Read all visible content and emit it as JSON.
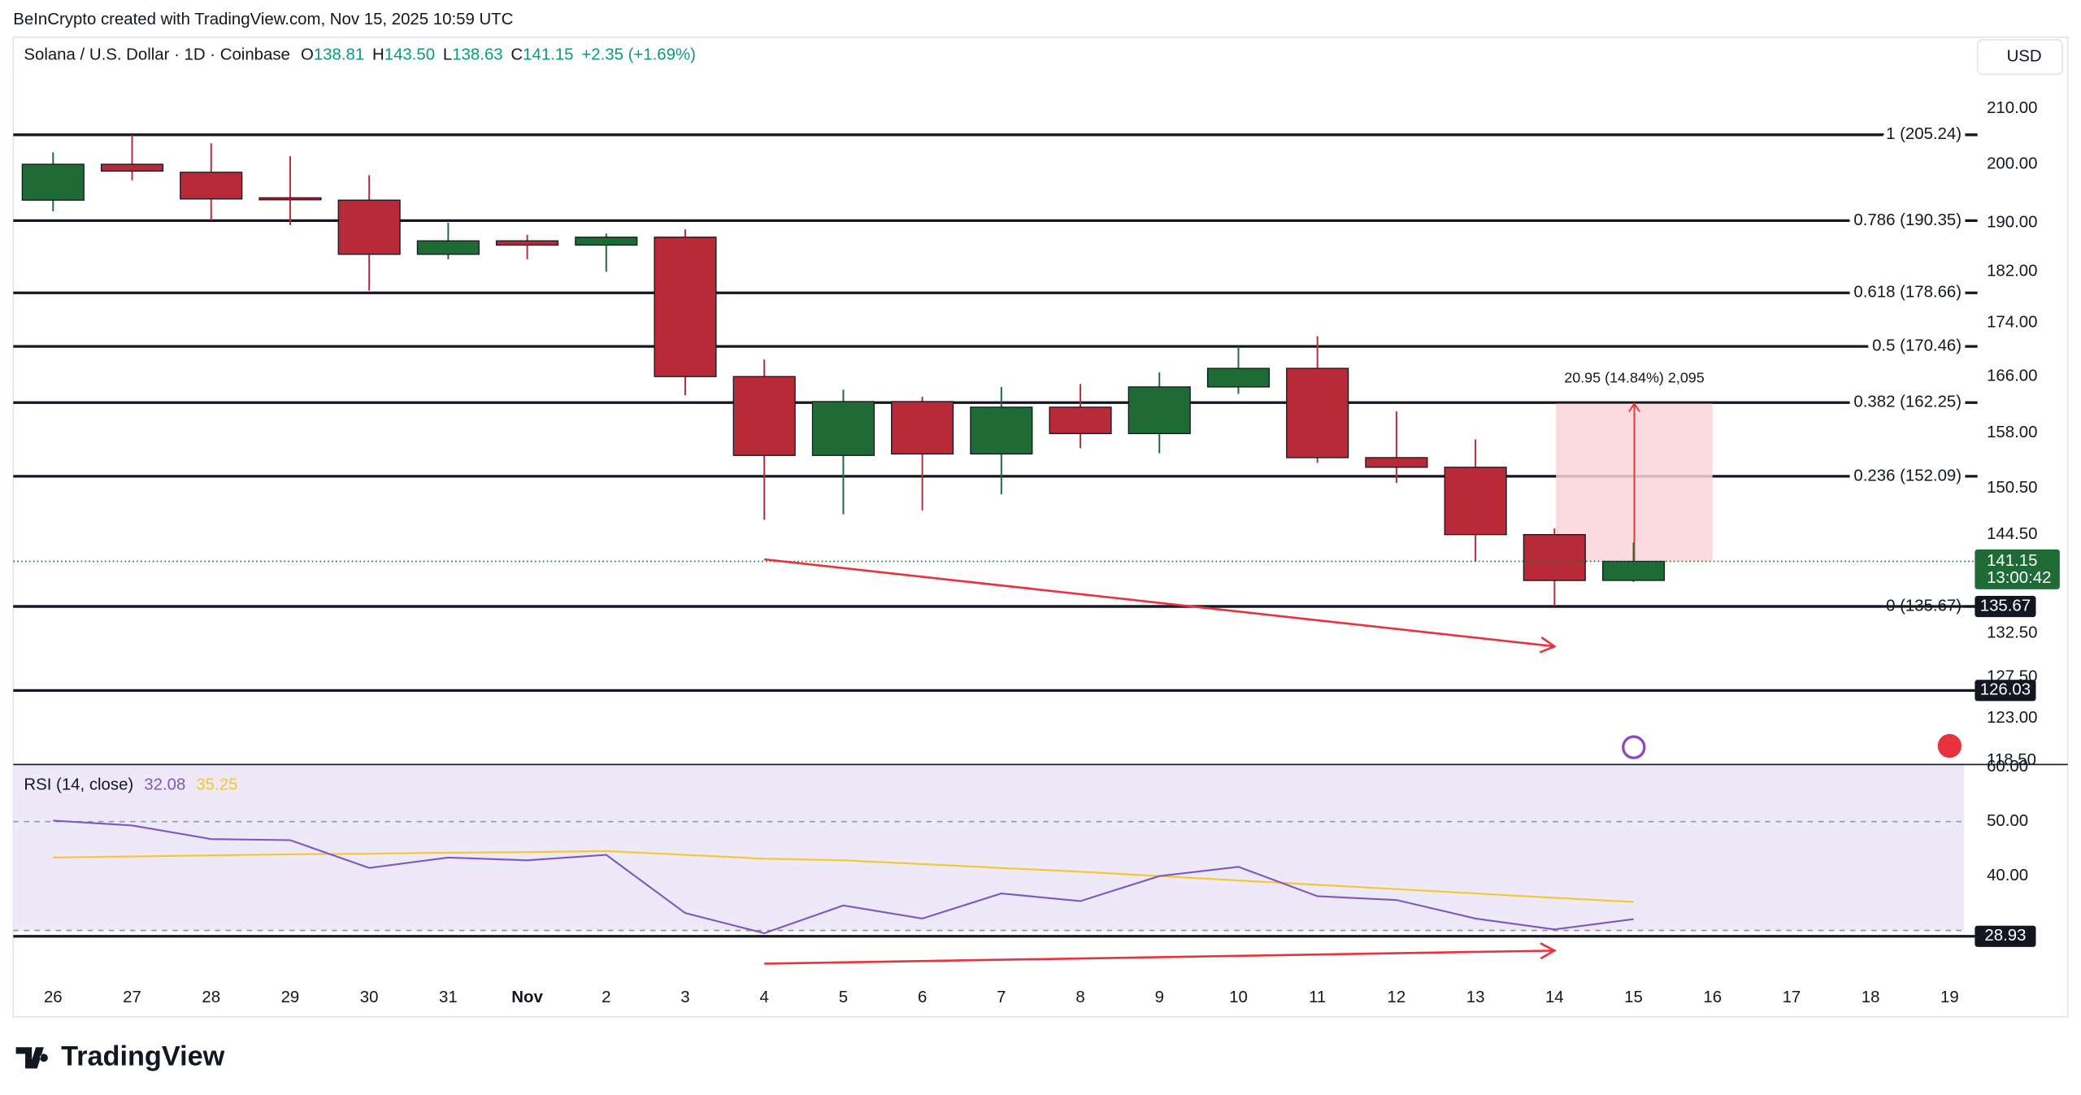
{
  "attribution": "BeInCrypto created with TradingView.com, Nov 15, 2025 10:59 UTC",
  "currency": "USD",
  "logo": "TradingView",
  "chart_data": {
    "type": "candlestick",
    "symbol": "Solana / U.S. Dollar · 1D · Coinbase",
    "ohlc_names": [
      "O",
      "H",
      "L",
      "C"
    ],
    "ohlc_labels": [
      "138.81",
      "143.50",
      "138.63",
      "141.15"
    ],
    "change": "+2.35 (+1.69%)",
    "categories": [
      "26",
      "27",
      "28",
      "29",
      "30",
      "31",
      "Nov",
      "2",
      "3",
      "4",
      "5",
      "6",
      "7",
      "8",
      "9",
      "10",
      "11",
      "12",
      "13",
      "14",
      "15",
      "16",
      "17",
      "18",
      "19"
    ],
    "open": [
      193.8,
      200,
      198.6,
      194.2,
      193.8,
      184.8,
      187.0,
      186.3,
      187.6,
      166,
      154.9,
      162.4,
      155.1,
      161.6,
      157.9,
      164.5,
      167.2,
      154.6,
      153.3,
      144.5,
      138.81,
      null,
      null,
      null,
      null
    ],
    "high": [
      202.1,
      205.2,
      203.7,
      201.4,
      198.1,
      190.0,
      188.0,
      188.2,
      188.9,
      168.5,
      164.1,
      163.1,
      164.5,
      164.9,
      166.6,
      170.4,
      172.0,
      161.0,
      157.1,
      145.3,
      143.5,
      null,
      null,
      null,
      null
    ],
    "low": [
      191.9,
      197.2,
      190.4,
      189.6,
      179.0,
      184.0,
      184.0,
      182.0,
      163.3,
      146.4,
      147.1,
      147.6,
      149.7,
      155.9,
      155.2,
      163.5,
      153.9,
      151.2,
      141.1,
      135.7,
      138.63,
      null,
      null,
      null,
      null
    ],
    "close": [
      200,
      198.8,
      194.0,
      193.9,
      184.8,
      187.0,
      186.3,
      187.6,
      166,
      154.9,
      162.4,
      155.1,
      161.6,
      157.9,
      164.5,
      167.2,
      154.6,
      153.3,
      144.5,
      138.8,
      141.15,
      null,
      null,
      null,
      null
    ],
    "up_color": "#1e6b35",
    "down_color": "#b82a37",
    "log_scale": true,
    "ylim": [
      118.1,
      223.6
    ],
    "yticks": [
      {
        "value": 210,
        "label": "210.00"
      },
      {
        "value": 200,
        "label": "200.00"
      },
      {
        "value": 190,
        "label": "190.00"
      },
      {
        "value": 182,
        "label": "182.00"
      },
      {
        "value": 174,
        "label": "174.00"
      },
      {
        "value": 166,
        "label": "166.00"
      },
      {
        "value": 158,
        "label": "158.00"
      },
      {
        "value": 150.5,
        "label": "150.50"
      },
      {
        "value": 144.5,
        "label": "144.50"
      },
      {
        "value": 132.5,
        "label": "132.50"
      },
      {
        "value": 127.5,
        "label": "127.50"
      },
      {
        "value": 123,
        "label": "123.00"
      },
      {
        "value": 118.5,
        "label": "118.50"
      }
    ],
    "fib_levels": [
      {
        "label": "1 (205.24)",
        "value": 205.24
      },
      {
        "label": "0.786 (190.35)",
        "value": 190.35
      },
      {
        "label": "0.618 (178.66)",
        "value": 178.66
      },
      {
        "label": "0.5 (170.46)",
        "value": 170.46
      },
      {
        "label": "0.382 (162.25)",
        "value": 162.25
      },
      {
        "label": "0.236 (152.09)",
        "value": 152.09
      },
      {
        "label": "0 (135.67)",
        "value": 135.67
      }
    ],
    "tagged_lines": [
      135.67,
      126.03
    ],
    "countdown": "13:00:42",
    "measure": {
      "from": 141.15,
      "to": 162.1,
      "label": "20.95 (14.84%) 2,095"
    },
    "price_arrow": {
      "from": 141.4,
      "to": 131.0,
      "color": "#e8333f"
    },
    "rsi": {
      "label": "RSI (14, close)",
      "values": [
        50.2,
        49.3,
        46.8,
        46.6,
        41.5,
        43.4,
        42.9,
        43.9,
        33.2,
        29.5,
        34.6,
        32.2,
        36.8,
        35.4,
        40.0,
        41.7,
        36.3,
        35.6,
        32.2,
        30.2,
        32.08,
        null,
        null,
        null,
        null
      ],
      "color": "#7e57c2",
      "ma": [
        43.4,
        43.6,
        43.8,
        44.0,
        44.1,
        44.3,
        44.4,
        44.6,
        43.9,
        43.2,
        42.9,
        42.2,
        41.5,
        40.8,
        40.0,
        39.2,
        38.4,
        37.6,
        36.8,
        36.0,
        35.25,
        null,
        null,
        null,
        null
      ],
      "ma_color": "#f7c52e",
      "ylim": [
        20.5,
        60.5
      ],
      "yticks": [
        {
          "value": 60,
          "label": "60.00"
        },
        {
          "value": 50,
          "label": "50.00"
        },
        {
          "value": 40,
          "label": "40.00"
        }
      ],
      "band": [
        30,
        70
      ],
      "midline": 50,
      "tagged_line": 28.93,
      "arrow": {
        "from": 23.9,
        "to": 26.3
      }
    }
  }
}
